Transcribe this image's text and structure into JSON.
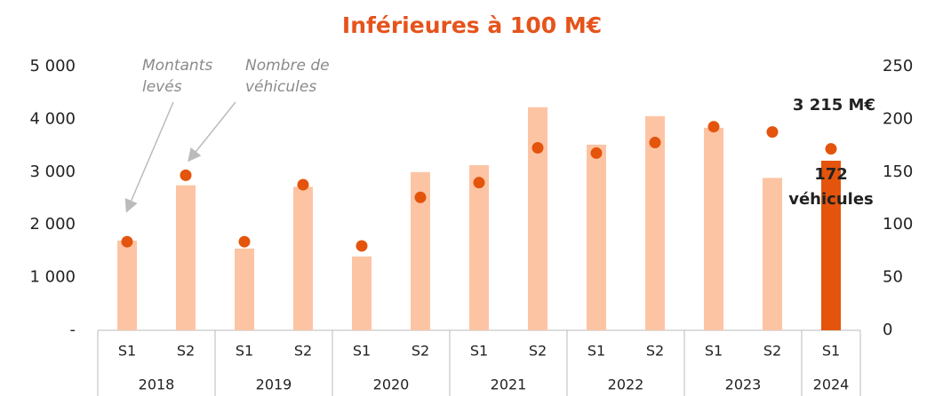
{
  "chart_data": {
    "type": "bar",
    "title": "Inférieures à 100 M€",
    "groups": [
      {
        "label": "2018",
        "categories": [
          "S1",
          "S2"
        ]
      },
      {
        "label": "2019",
        "categories": [
          "S1",
          "S2"
        ]
      },
      {
        "label": "2020",
        "categories": [
          "S1",
          "S2"
        ]
      },
      {
        "label": "2021",
        "categories": [
          "S1",
          "S2"
        ]
      },
      {
        "label": "2022",
        "categories": [
          "S1",
          "S2"
        ]
      },
      {
        "label": "2023",
        "categories": [
          "S1",
          "S2"
        ]
      },
      {
        "label": "2024",
        "categories": [
          "S1"
        ]
      }
    ],
    "series": [
      {
        "name": "Montants levés",
        "type": "bar",
        "colors": [
          "#fdc4a4",
          "#fdc4a4",
          "#fdc4a4",
          "#fdc4a4",
          "#fdc4a4",
          "#fdc4a4",
          "#fdc4a4",
          "#fdc4a4",
          "#fdc4a4",
          "#fdc4a4",
          "#fdc4a4",
          "#fdc4a4",
          "#e4540c"
        ],
        "values": [
          1700,
          2750,
          1550,
          2720,
          1400,
          3000,
          3130,
          4230,
          3520,
          4060,
          3840,
          2890,
          3215
        ],
        "value_labels": [
          null,
          null,
          null,
          null,
          null,
          null,
          null,
          null,
          null,
          null,
          null,
          null,
          "3 215 M€"
        ]
      },
      {
        "name": "Nombre de véhicules",
        "type": "scatter",
        "axis": "y2",
        "color": "#e4540c",
        "values": [
          84,
          147,
          84,
          138,
          80,
          126,
          140,
          173,
          168,
          178,
          193,
          188,
          172
        ],
        "value_labels": [
          null,
          null,
          null,
          null,
          null,
          null,
          null,
          null,
          null,
          null,
          null,
          null,
          "172 véhicules"
        ]
      }
    ],
    "annotations": [
      "Montants levés",
      "Nombre de véhicules"
    ],
    "ylim": [
      0,
      5000
    ],
    "yticks": [
      {
        "value": 0,
        "label": "-"
      },
      {
        "value": 1000,
        "label": "1 000"
      },
      {
        "value": 2000,
        "label": "2 000"
      },
      {
        "value": 3000,
        "label": "3 000"
      },
      {
        "value": 4000,
        "label": "4 000"
      },
      {
        "value": 5000,
        "label": "5 000"
      }
    ],
    "y2lim": [
      0,
      250
    ],
    "y2ticks": [
      0,
      50,
      100,
      150,
      200,
      250
    ]
  }
}
